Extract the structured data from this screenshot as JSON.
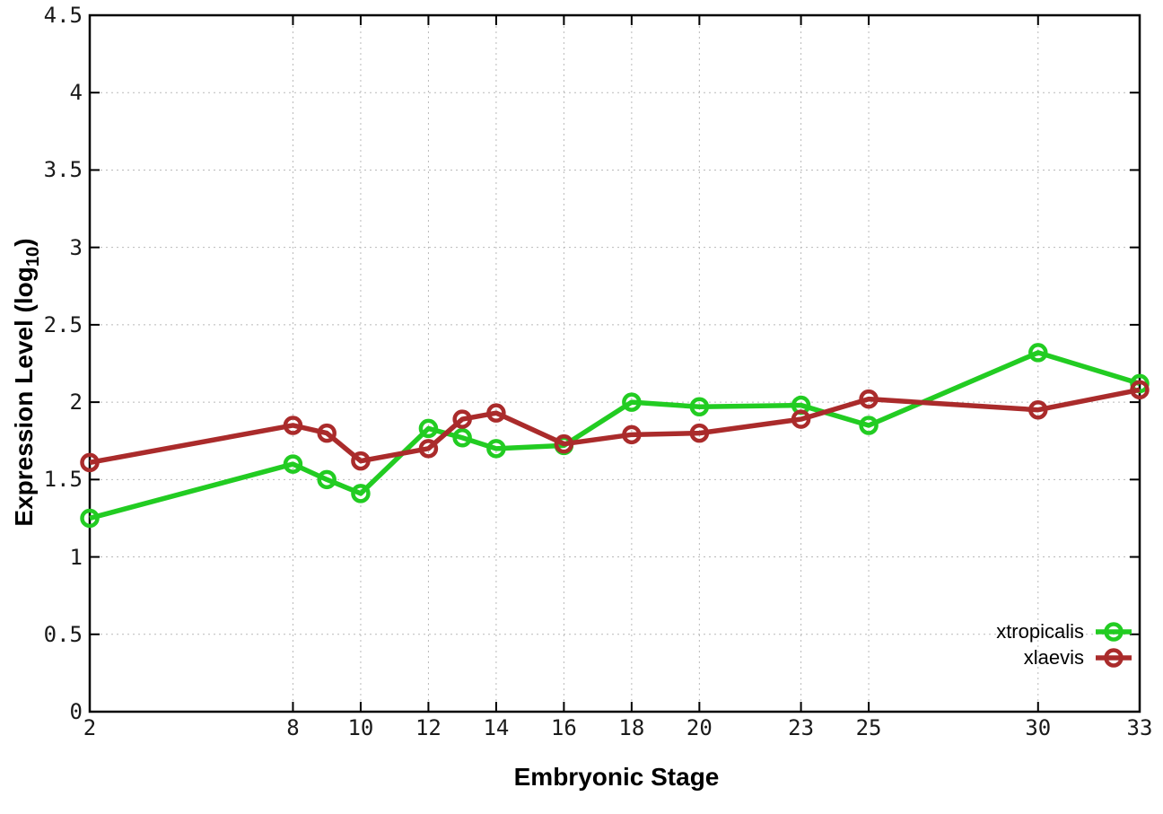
{
  "chart_data": {
    "type": "line",
    "title": "",
    "xlabel": "Embryonic Stage",
    "ylabel_prefix": "Expression Level (log",
    "ylabel_sub": "10",
    "ylabel_suffix": ")",
    "xlim": [
      2,
      33
    ],
    "ylim": [
      0,
      4.5
    ],
    "x_ticks": [
      2,
      8,
      10,
      12,
      14,
      16,
      18,
      20,
      23,
      25,
      30,
      33
    ],
    "x_tick_labels": [
      "2",
      "8",
      "10",
      "12",
      "14",
      "16",
      "18",
      "20",
      "23",
      "25",
      "30",
      "33"
    ],
    "y_ticks": [
      0,
      0.5,
      1,
      1.5,
      2,
      2.5,
      3,
      3.5,
      4,
      4.5
    ],
    "y_tick_labels": [
      "0",
      "0.5",
      "1",
      "1.5",
      "2",
      "2.5",
      "3",
      "3.5",
      "4",
      "4.5"
    ],
    "grid": true,
    "legend_position": "bottom-right",
    "marker": "open-circle",
    "x": [
      2,
      8,
      9,
      10,
      12,
      13,
      14,
      16,
      18,
      20,
      23,
      25,
      30,
      33
    ],
    "series": [
      {
        "name": "xtropicalis",
        "color": "#22cc22",
        "values": [
          1.25,
          1.6,
          1.5,
          1.41,
          1.83,
          1.77,
          1.7,
          1.72,
          2.0,
          1.97,
          1.98,
          1.85,
          2.32,
          2.12
        ]
      },
      {
        "name": "xlaevis",
        "color": "#aa2b2b",
        "values": [
          1.61,
          1.85,
          1.8,
          1.62,
          1.7,
          1.89,
          1.93,
          1.73,
          1.79,
          1.8,
          1.89,
          2.02,
          1.95,
          2.08
        ]
      }
    ]
  }
}
